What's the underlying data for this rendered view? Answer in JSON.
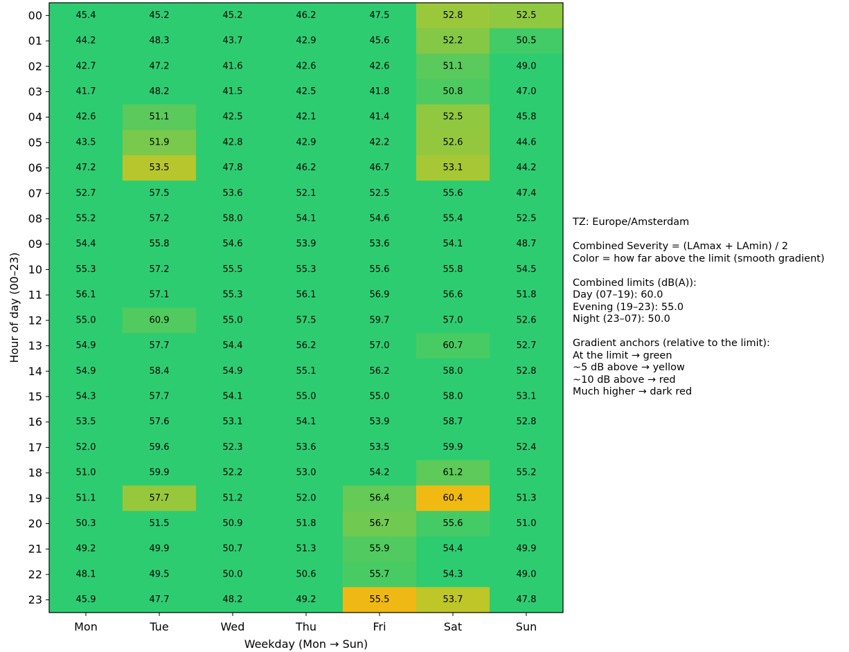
{
  "chart_data": {
    "type": "heatmap",
    "title": "",
    "xlabel": "Weekday (Mon → Sun)",
    "ylabel": "Hour of day (00–23)",
    "x_categories": [
      "Mon",
      "Tue",
      "Wed",
      "Thu",
      "Fri",
      "Sat",
      "Sun"
    ],
    "y_categories": [
      "00",
      "01",
      "02",
      "03",
      "04",
      "05",
      "06",
      "07",
      "08",
      "09",
      "10",
      "11",
      "12",
      "13",
      "14",
      "15",
      "16",
      "17",
      "18",
      "19",
      "20",
      "21",
      "22",
      "23"
    ],
    "values": [
      [
        45.4,
        45.2,
        45.2,
        46.2,
        47.5,
        52.8,
        52.5
      ],
      [
        44.2,
        48.3,
        43.7,
        42.9,
        45.6,
        52.2,
        50.5
      ],
      [
        42.7,
        47.2,
        41.6,
        42.6,
        42.6,
        51.1,
        49.0
      ],
      [
        41.7,
        48.2,
        41.5,
        42.5,
        41.8,
        50.8,
        47.0
      ],
      [
        42.6,
        51.1,
        42.5,
        42.1,
        41.4,
        52.5,
        45.8
      ],
      [
        43.5,
        51.9,
        42.8,
        42.9,
        42.2,
        52.6,
        44.6
      ],
      [
        47.2,
        53.5,
        47.8,
        46.2,
        46.7,
        53.1,
        44.2
      ],
      [
        52.7,
        57.5,
        53.6,
        52.1,
        52.5,
        55.6,
        47.4
      ],
      [
        55.2,
        57.2,
        58.0,
        54.1,
        54.6,
        55.4,
        52.5
      ],
      [
        54.4,
        55.8,
        54.6,
        53.9,
        53.6,
        54.1,
        48.7
      ],
      [
        55.3,
        57.2,
        55.5,
        55.3,
        55.6,
        55.8,
        54.5
      ],
      [
        56.1,
        57.1,
        55.3,
        56.1,
        56.9,
        56.6,
        51.8
      ],
      [
        55.0,
        60.9,
        55.0,
        57.5,
        59.7,
        57.0,
        52.6
      ],
      [
        54.9,
        57.7,
        54.4,
        56.2,
        57.0,
        60.7,
        52.7
      ],
      [
        54.9,
        58.4,
        54.9,
        55.1,
        56.2,
        58.0,
        52.8
      ],
      [
        54.3,
        57.7,
        54.1,
        55.0,
        55.0,
        58.0,
        53.1
      ],
      [
        53.5,
        57.6,
        53.1,
        54.1,
        53.9,
        58.7,
        52.8
      ],
      [
        52.0,
        59.6,
        52.3,
        53.6,
        53.5,
        59.9,
        52.4
      ],
      [
        51.0,
        59.9,
        52.2,
        53.0,
        54.2,
        61.2,
        55.2
      ],
      [
        51.1,
        57.7,
        51.2,
        52.0,
        56.4,
        60.4,
        51.3
      ],
      [
        50.3,
        51.5,
        50.9,
        51.8,
        56.7,
        55.6,
        51.0
      ],
      [
        49.2,
        49.9,
        50.7,
        51.3,
        55.9,
        54.4,
        49.9
      ],
      [
        48.1,
        49.5,
        50.0,
        50.6,
        55.7,
        54.3,
        49.0
      ],
      [
        45.9,
        47.7,
        48.2,
        49.2,
        55.5,
        53.7,
        47.8
      ]
    ],
    "limits": {
      "day": 60.0,
      "evening": 55.0,
      "night": 50.0
    },
    "color_anchors": {
      "at_limit": "#2ecc71",
      "plus5": "#f1c40f",
      "plus10": "#e74c3c",
      "much_higher": "#8b0000"
    },
    "grid": false
  },
  "side_note": {
    "tz": "TZ: Europe/Amsterdam",
    "severity_formula": "Combined Severity = (LAmax + LAmin) / 2",
    "color_meaning": "Color = how far above the limit (smooth gradient)",
    "limits_heading": "Combined limits (dB(A)):",
    "limit_day": "Day (07–19): 60.0",
    "limit_evening": "Evening (19–23): 55.0",
    "limit_night": "Night (23–07): 50.0",
    "anchors_heading": "Gradient anchors (relative to the limit):",
    "anchor_limit": "At the limit → green",
    "anchor_5": "~5 dB above → yellow",
    "anchor_10": "~10 dB above → red",
    "anchor_much": "Much higher → dark red"
  }
}
